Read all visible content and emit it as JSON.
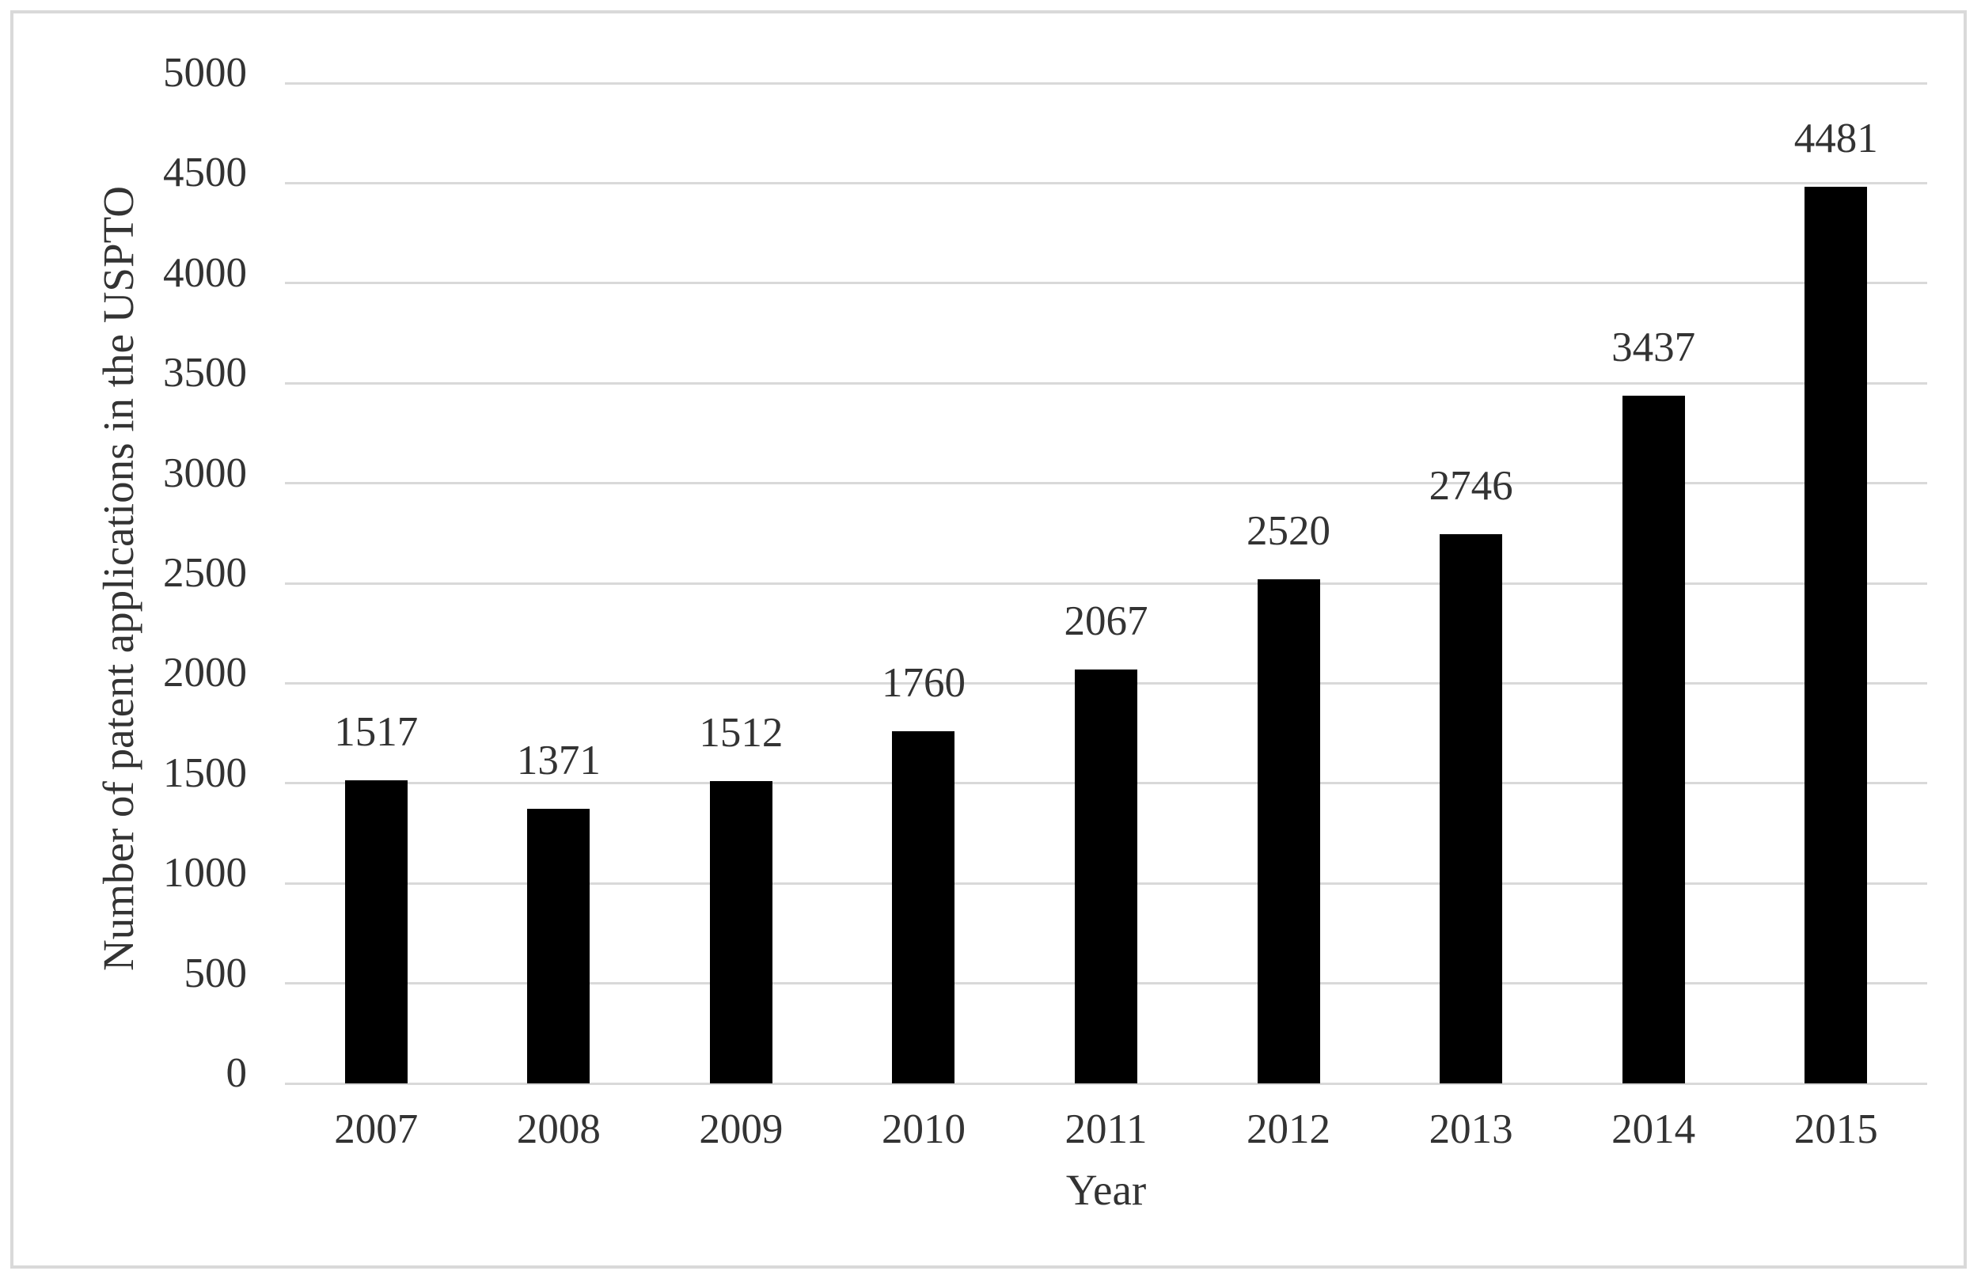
{
  "chart_data": {
    "type": "bar",
    "title": "",
    "xlabel": "Year",
    "ylabel": "Number of patent applications in the USPTO",
    "categories": [
      "2007",
      "2008",
      "2009",
      "2010",
      "2011",
      "2012",
      "2013",
      "2014",
      "2015"
    ],
    "values": [
      1517,
      1371,
      1512,
      1760,
      2067,
      2520,
      2746,
      3437,
      4481
    ],
    "data_labels": [
      "1517",
      "1371",
      "1512",
      "1760",
      "2067",
      "2520",
      "2746",
      "3437",
      "4481"
    ],
    "ylim": [
      0,
      5000
    ],
    "ytick_step": 500,
    "yticks": [
      "0",
      "500",
      "1000",
      "1500",
      "2000",
      "2500",
      "3000",
      "3500",
      "4000",
      "4500",
      "5000"
    ],
    "grid": "horizontal",
    "legend": "none",
    "bar_color": "#000000",
    "gridline_color": "#d9d9d9",
    "border_color": "#d9d9d9",
    "text_color": "#333333"
  }
}
